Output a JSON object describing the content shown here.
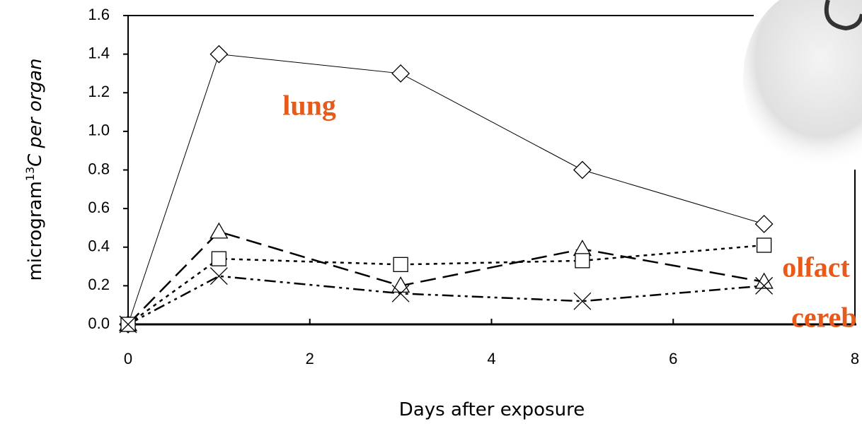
{
  "chart_data": {
    "type": "line",
    "x": [
      0,
      1,
      3,
      5,
      7
    ],
    "series": [
      {
        "marker": "diamond",
        "color": "#000000",
        "dash": "",
        "width": 1,
        "values": [
          0,
          1.4,
          1.3,
          0.8,
          0.52
        ]
      },
      {
        "marker": "triangle",
        "color": "#000000",
        "dash": "22 10",
        "width": 2.5,
        "values": [
          0,
          0.48,
          0.2,
          0.39,
          0.22
        ]
      },
      {
        "marker": "square",
        "color": "#000000",
        "dash": "5 6",
        "width": 2.5,
        "values": [
          0,
          0.34,
          0.31,
          0.33,
          0.41
        ]
      },
      {
        "marker": "cross",
        "color": "#000000",
        "dash": "16 6 4 6 4 6",
        "width": 2.5,
        "values": [
          0,
          0.25,
          0.16,
          0.12,
          0.2
        ]
      }
    ],
    "xlim": [
      0,
      8
    ],
    "xticks": [
      0,
      2,
      4,
      6,
      8
    ],
    "ylim": [
      0,
      1.6
    ],
    "yticks": [
      {
        "value": 0,
        "label": "0.0"
      },
      0.2,
      0.4,
      0.6,
      0.8,
      {
        "value": 1,
        "label": "1.0"
      },
      1.2,
      1.4,
      1.6
    ],
    "x_label": "Days after exposure",
    "y_label": {
      "main": "microgram",
      "sup": "13",
      "rest": "C per organ"
    },
    "annotations": [
      {
        "text": "lung",
        "x": 1.7,
        "y": 1.12
      },
      {
        "text": "olfact",
        "x": 7.2,
        "y": 0.28
      },
      {
        "text": "cereb",
        "x": 7.3,
        "y": 0.02
      }
    ],
    "annotation_color": "#e85a1a"
  }
}
